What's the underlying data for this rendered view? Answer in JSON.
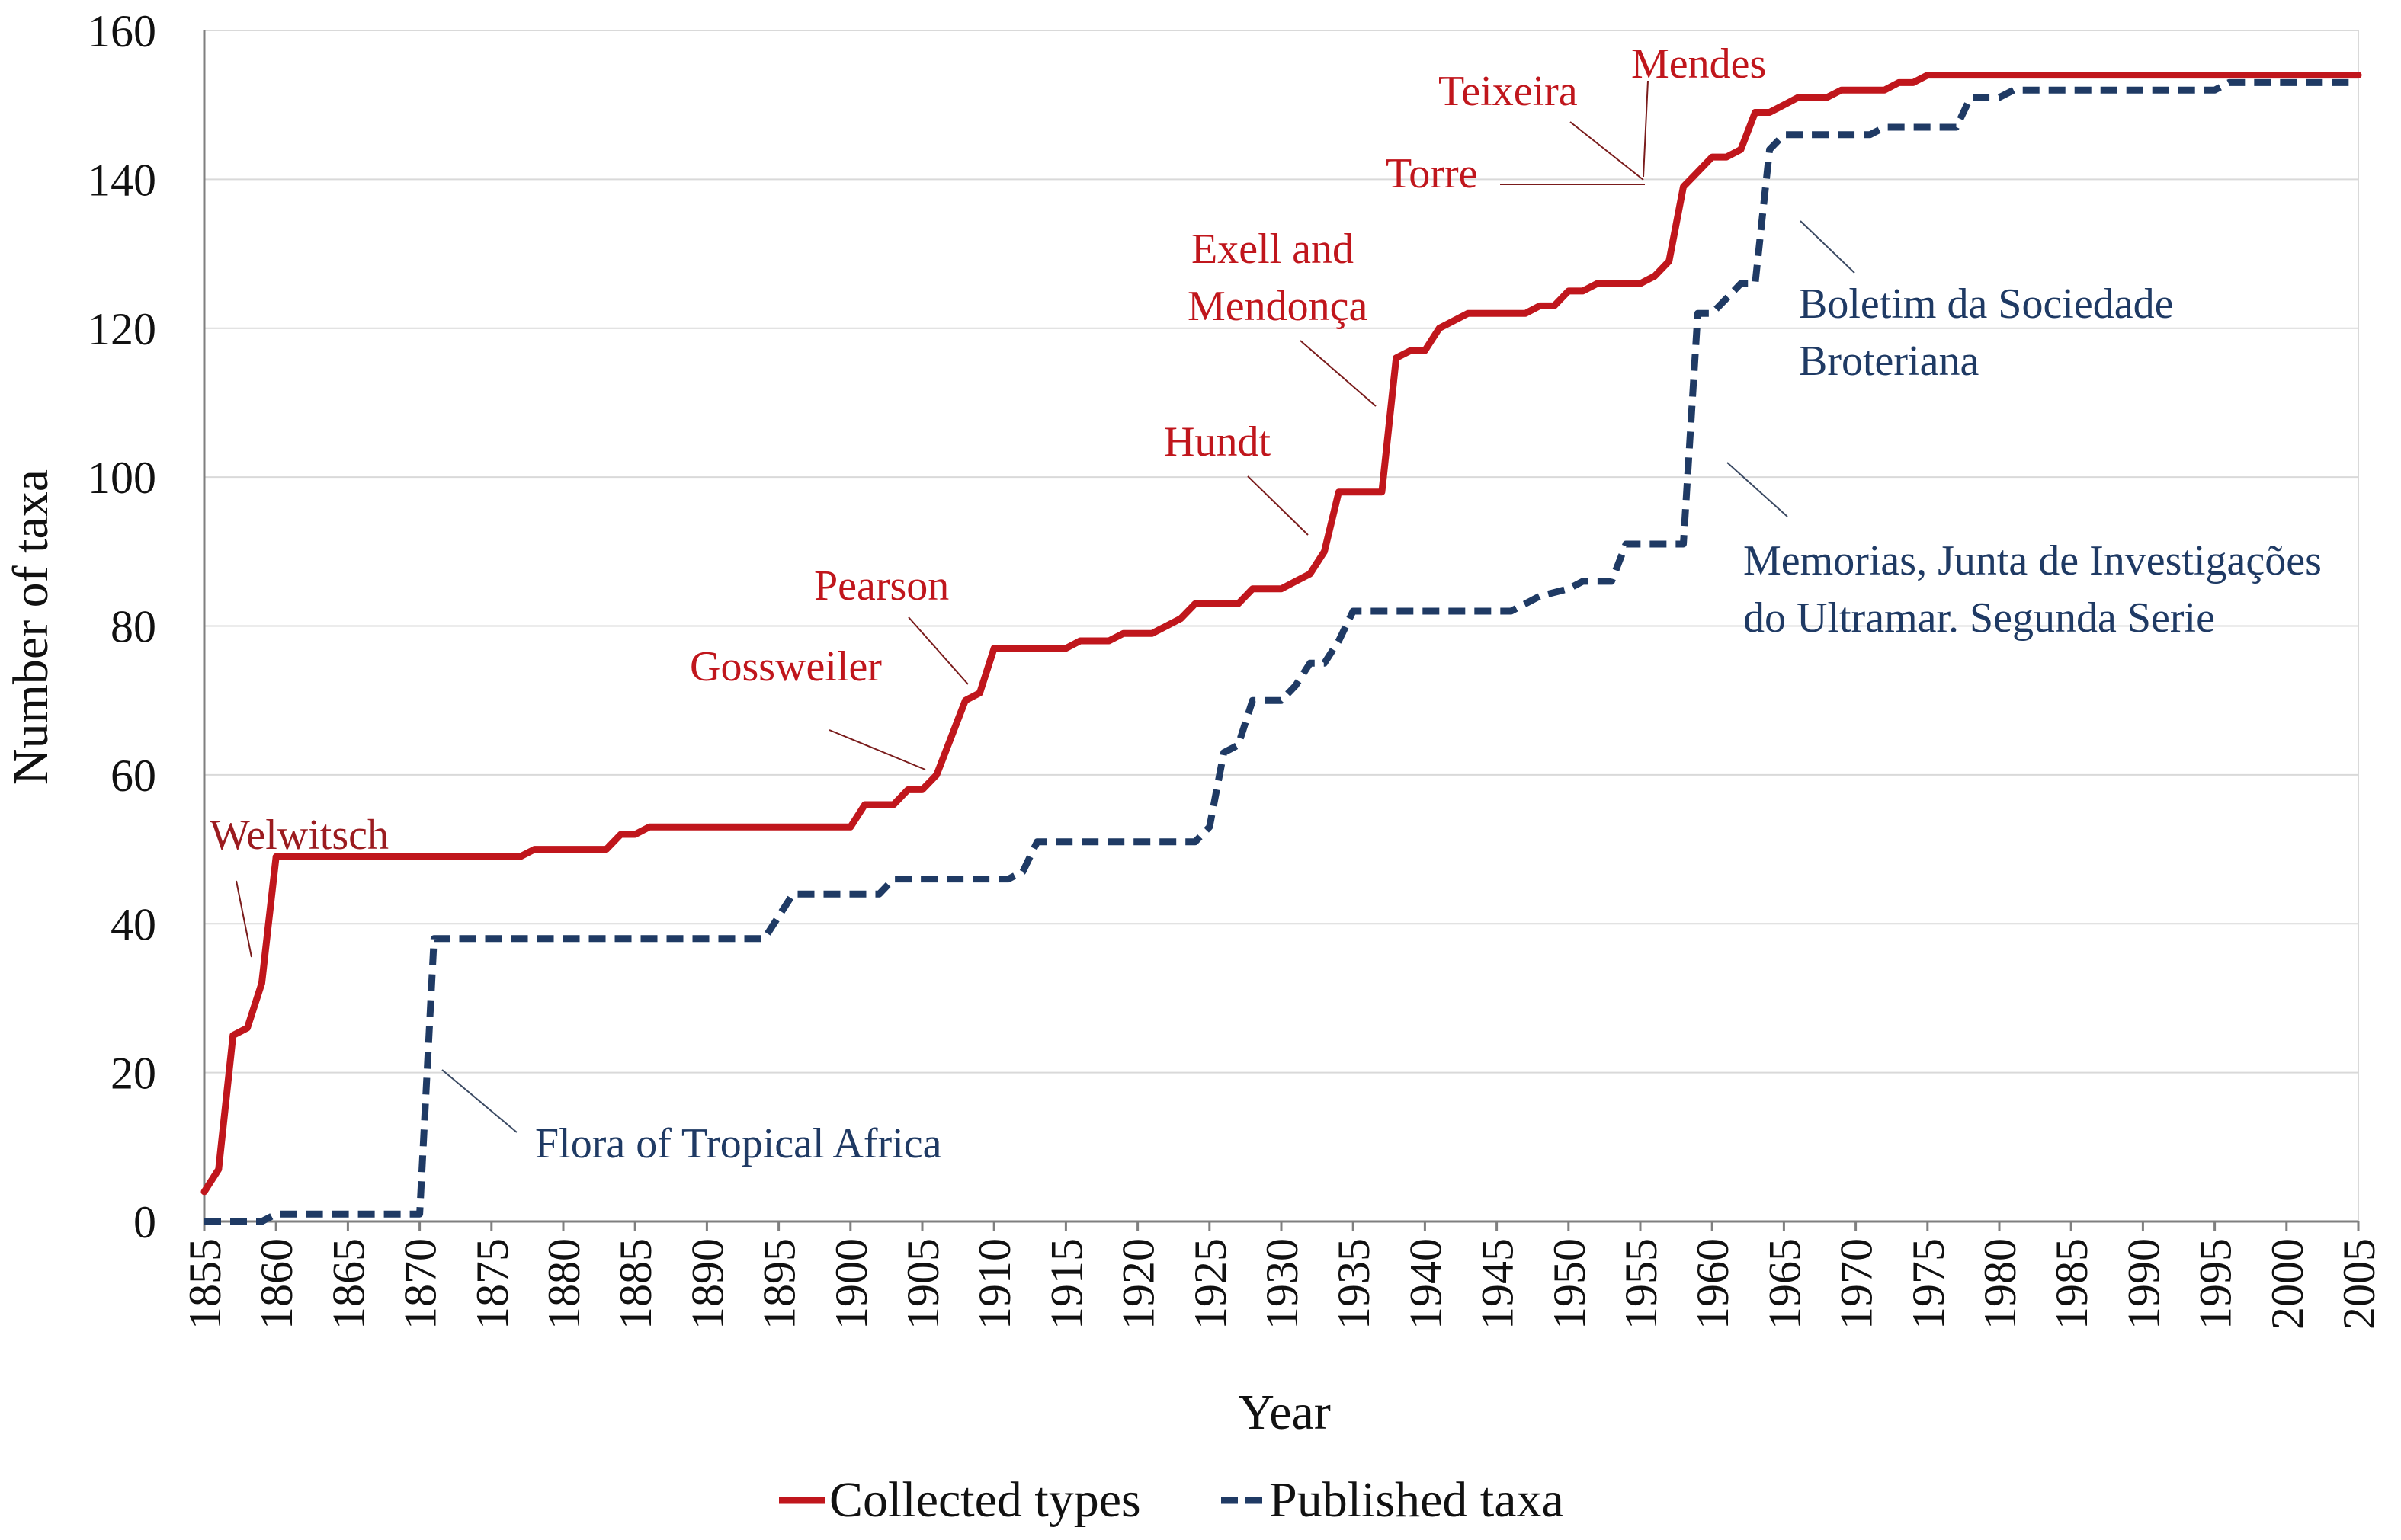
{
  "chart_data": {
    "type": "line",
    "title": "",
    "xlabel": "Year",
    "ylabel": "Number of taxa",
    "xlim": [
      1855,
      2005
    ],
    "ylim": [
      0,
      160
    ],
    "x_ticks": [
      1855,
      1860,
      1865,
      1870,
      1875,
      1880,
      1885,
      1890,
      1895,
      1900,
      1905,
      1910,
      1915,
      1920,
      1925,
      1930,
      1935,
      1940,
      1945,
      1950,
      1955,
      1960,
      1965,
      1970,
      1975,
      1980,
      1985,
      1990,
      1995,
      2000,
      2005
    ],
    "y_ticks": [
      0,
      20,
      40,
      60,
      80,
      100,
      120,
      140,
      160
    ],
    "grid": "horizontal",
    "legend_position": "bottom",
    "series": [
      {
        "name": "Collected types",
        "color": "#c0161c",
        "style": "solid",
        "points": [
          [
            1855,
            4
          ],
          [
            1856,
            7
          ],
          [
            1857,
            25
          ],
          [
            1858,
            26
          ],
          [
            1859,
            32
          ],
          [
            1860,
            49
          ],
          [
            1877,
            49
          ],
          [
            1878,
            50
          ],
          [
            1883,
            50
          ],
          [
            1884,
            52
          ],
          [
            1885,
            52
          ],
          [
            1886,
            53
          ],
          [
            1900,
            53
          ],
          [
            1901,
            56
          ],
          [
            1903,
            56
          ],
          [
            1904,
            58
          ],
          [
            1905,
            58
          ],
          [
            1906,
            60
          ],
          [
            1907,
            65
          ],
          [
            1908,
            70
          ],
          [
            1909,
            71
          ],
          [
            1910,
            77
          ],
          [
            1915,
            77
          ],
          [
            1916,
            78
          ],
          [
            1918,
            78
          ],
          [
            1919,
            79
          ],
          [
            1921,
            79
          ],
          [
            1922,
            80
          ],
          [
            1923,
            81
          ],
          [
            1924,
            83
          ],
          [
            1927,
            83
          ],
          [
            1928,
            85
          ],
          [
            1930,
            85
          ],
          [
            1931,
            86
          ],
          [
            1932,
            87
          ],
          [
            1933,
            90
          ],
          [
            1934,
            98
          ],
          [
            1937,
            98
          ],
          [
            1938,
            116
          ],
          [
            1939,
            117
          ],
          [
            1940,
            117
          ],
          [
            1941,
            120
          ],
          [
            1942,
            121
          ],
          [
            1943,
            122
          ],
          [
            1947,
            122
          ],
          [
            1948,
            123
          ],
          [
            1949,
            123
          ],
          [
            1950,
            125
          ],
          [
            1951,
            125
          ],
          [
            1952,
            126
          ],
          [
            1955,
            126
          ],
          [
            1956,
            127
          ],
          [
            1957,
            129
          ],
          [
            1958,
            139
          ],
          [
            1959,
            141
          ],
          [
            1960,
            143
          ],
          [
            1961,
            143
          ],
          [
            1962,
            144
          ],
          [
            1963,
            149
          ],
          [
            1964,
            149
          ],
          [
            1965,
            150
          ],
          [
            1966,
            151
          ],
          [
            1968,
            151
          ],
          [
            1969,
            152
          ],
          [
            1972,
            152
          ],
          [
            1973,
            153
          ],
          [
            1974,
            153
          ],
          [
            1975,
            154
          ],
          [
            2005,
            154
          ]
        ]
      },
      {
        "name": "Published taxa",
        "color": "#1f3a64",
        "style": "dashed",
        "points": [
          [
            1855,
            0
          ],
          [
            1859,
            0
          ],
          [
            1860,
            1
          ],
          [
            1870,
            1
          ],
          [
            1871,
            38
          ],
          [
            1894,
            38
          ],
          [
            1896,
            44
          ],
          [
            1902,
            44
          ],
          [
            1903,
            46
          ],
          [
            1911,
            46
          ],
          [
            1912,
            47
          ],
          [
            1913,
            51
          ],
          [
            1924,
            51
          ],
          [
            1925,
            53
          ],
          [
            1926,
            63
          ],
          [
            1927,
            64
          ],
          [
            1928,
            70
          ],
          [
            1930,
            70
          ],
          [
            1931,
            72
          ],
          [
            1932,
            75
          ],
          [
            1933,
            75
          ],
          [
            1934,
            78
          ],
          [
            1935,
            82
          ],
          [
            1946,
            82
          ],
          [
            1948,
            84
          ],
          [
            1950,
            85
          ],
          [
            1951,
            86
          ],
          [
            1953,
            86
          ],
          [
            1954,
            91
          ],
          [
            1958,
            91
          ],
          [
            1959,
            122
          ],
          [
            1960,
            122
          ],
          [
            1961,
            124
          ],
          [
            1962,
            126
          ],
          [
            1963,
            126
          ],
          [
            1964,
            144
          ],
          [
            1965,
            146
          ],
          [
            1970,
            146
          ],
          [
            1971,
            146
          ],
          [
            1972,
            147
          ],
          [
            1977,
            147
          ],
          [
            1978,
            151
          ],
          [
            1980,
            151
          ],
          [
            1981,
            152
          ],
          [
            1995,
            152
          ],
          [
            1996,
            153
          ],
          [
            2005,
            153
          ]
        ]
      }
    ],
    "annotations": [
      {
        "text": "Welwitsch",
        "series": "Collected types"
      },
      {
        "text": "Gossweiler",
        "series": "Collected types"
      },
      {
        "text": "Pearson",
        "series": "Collected types"
      },
      {
        "text": "Hundt",
        "series": "Collected types"
      },
      {
        "text": "Exell and",
        "series": "Collected types"
      },
      {
        "text": "Mendonça",
        "series": "Collected types"
      },
      {
        "text": "Torre",
        "series": "Collected types"
      },
      {
        "text": "Teixeira",
        "series": "Collected types"
      },
      {
        "text": "Mendes",
        "series": "Collected types"
      },
      {
        "text": "Flora of Tropical Africa",
        "series": "Published taxa"
      },
      {
        "text": "Boletim da Sociedade",
        "series": "Published taxa"
      },
      {
        "text": "Broteriana",
        "series": "Published taxa"
      },
      {
        "text": "Memorias, Junta de Investigações",
        "series": "Published taxa"
      },
      {
        "text": "do Ultramar. Segunda Serie",
        "series": "Published taxa"
      }
    ]
  }
}
